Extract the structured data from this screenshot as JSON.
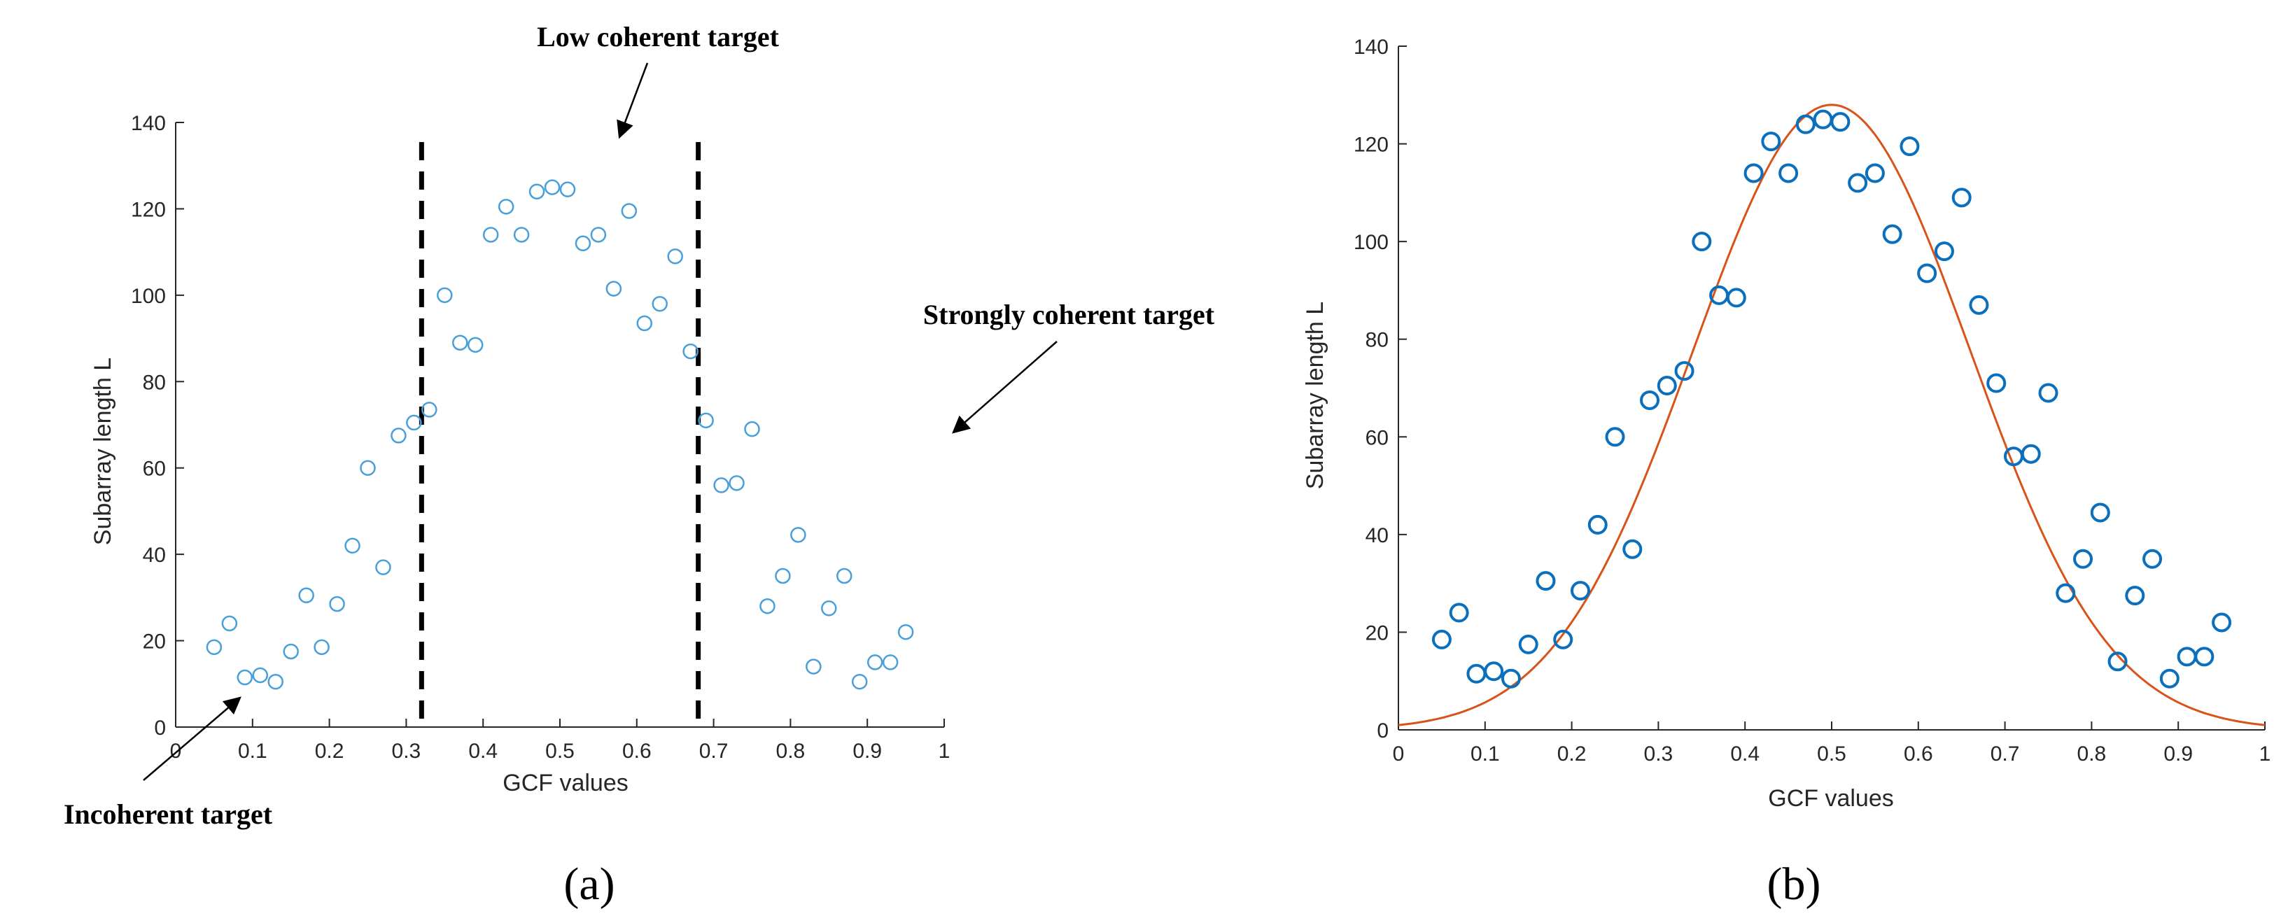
{
  "chart_data": [
    {
      "type": "scatter",
      "panel_label": "(a)",
      "title": "",
      "xlabel": "GCF values",
      "ylabel": "Subarray length L",
      "xlim": [
        0,
        1
      ],
      "ylim": [
        0,
        140
      ],
      "x_ticks": [
        0,
        0.1,
        0.2,
        0.3,
        0.4,
        0.5,
        0.6,
        0.7,
        0.8,
        0.9,
        1
      ],
      "x_tick_labels": [
        "0",
        "0.1",
        "0.2",
        "0.3",
        "0.4",
        "0.5",
        "0.6",
        "0.7",
        "0.8",
        "0.9",
        "1"
      ],
      "y_ticks": [
        0,
        20,
        40,
        60,
        80,
        100,
        120,
        140
      ],
      "y_tick_labels": [
        "0",
        "20",
        "40",
        "60",
        "80",
        "100",
        "120",
        "140"
      ],
      "grid": false,
      "marker_color": "#4a9fd8",
      "series": [
        {
          "name": "Subarray length",
          "x": [
            0.05,
            0.07,
            0.09,
            0.11,
            0.13,
            0.15,
            0.17,
            0.19,
            0.21,
            0.23,
            0.25,
            0.27,
            0.29,
            0.31,
            0.33,
            0.35,
            0.37,
            0.39,
            0.41,
            0.43,
            0.45,
            0.47,
            0.49,
            0.51,
            0.53,
            0.55,
            0.57,
            0.59,
            0.61,
            0.63,
            0.65,
            0.67,
            0.69,
            0.71,
            0.73,
            0.75,
            0.77,
            0.79,
            0.81,
            0.83,
            0.85,
            0.87,
            0.89,
            0.91,
            0.93,
            0.95
          ],
          "y": [
            18.5,
            24,
            11.5,
            12,
            10.5,
            17.5,
            30.5,
            18.5,
            28.5,
            42,
            60,
            37,
            67.5,
            70.5,
            73.5,
            100,
            89,
            88.5,
            114,
            120.5,
            114,
            124,
            125,
            124.5,
            112,
            114,
            101.5,
            119.5,
            93.5,
            98,
            109,
            87,
            71,
            56,
            56.5,
            69,
            28,
            35,
            44.5,
            14,
            27.5,
            35,
            10.5,
            15,
            15,
            22
          ]
        }
      ],
      "threshold_lines": [
        {
          "name": "Lower threshold",
          "x": 0.32,
          "style": "dashed"
        },
        {
          "name": "Upper threshold",
          "x": 0.68,
          "style": "dashed"
        }
      ],
      "annotations": {
        "low": "Low coherent target",
        "strong": "Strongly coherent target",
        "incoherent": "Incoherent target"
      }
    },
    {
      "type": "scatter",
      "panel_label": "(b)",
      "title": "",
      "xlabel": "GCF values",
      "ylabel": "Subarray length L",
      "xlim": [
        0,
        1
      ],
      "ylim": [
        0,
        140
      ],
      "x_ticks": [
        0,
        0.1,
        0.2,
        0.3,
        0.4,
        0.5,
        0.6,
        0.7,
        0.8,
        0.9,
        1
      ],
      "x_tick_labels": [
        "0",
        "0.1",
        "0.2",
        "0.3",
        "0.4",
        "0.5",
        "0.6",
        "0.7",
        "0.8",
        "0.9",
        "1"
      ],
      "y_ticks": [
        0,
        20,
        40,
        60,
        80,
        100,
        120,
        140
      ],
      "y_tick_labels": [
        "0",
        "20",
        "40",
        "60",
        "80",
        "100",
        "120",
        "140"
      ],
      "grid": false,
      "marker_color": "#0a6fbd",
      "fit_color": "#d95319",
      "series": [
        {
          "name": "Subarray length",
          "x": [
            0.05,
            0.07,
            0.09,
            0.11,
            0.13,
            0.15,
            0.17,
            0.19,
            0.21,
            0.23,
            0.25,
            0.27,
            0.29,
            0.31,
            0.33,
            0.35,
            0.37,
            0.39,
            0.41,
            0.43,
            0.45,
            0.47,
            0.49,
            0.51,
            0.53,
            0.55,
            0.57,
            0.59,
            0.61,
            0.63,
            0.65,
            0.67,
            0.69,
            0.71,
            0.73,
            0.75,
            0.77,
            0.79,
            0.81,
            0.83,
            0.85,
            0.87,
            0.89,
            0.91,
            0.93,
            0.95
          ],
          "y": [
            18.5,
            24,
            11.5,
            12,
            10.5,
            17.5,
            30.5,
            18.5,
            28.5,
            42,
            60,
            37,
            67.5,
            70.5,
            73.5,
            100,
            89,
            88.5,
            114,
            120.5,
            114,
            124,
            125,
            124.5,
            112,
            114,
            101.5,
            119.5,
            93.5,
            98,
            109,
            87,
            71,
            56,
            56.5,
            69,
            28,
            35,
            44.5,
            14,
            27.5,
            35,
            10.5,
            15,
            15,
            22
          ]
        }
      ],
      "fit": {
        "type": "gaussian",
        "amplitude": 128,
        "center": 0.5,
        "sigma": 0.16
      }
    }
  ]
}
